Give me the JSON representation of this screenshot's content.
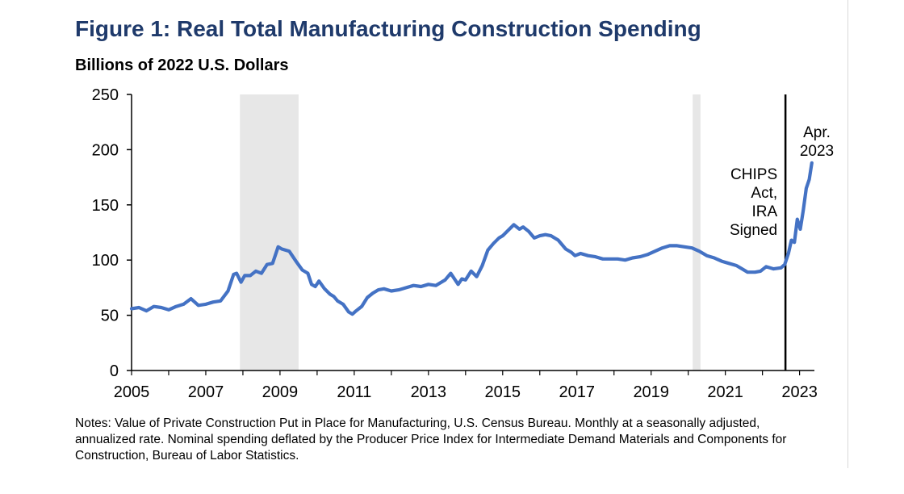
{
  "chart_data": {
    "type": "line",
    "title": "Figure 1: Real Total Manufacturing Construction Spending",
    "ylabel": "Billions of 2022 U.S. Dollars",
    "xlabel": "",
    "xlim": [
      2005,
      2023.4
    ],
    "ylim": [
      0,
      250
    ],
    "yticks": [
      0,
      50,
      100,
      150,
      200,
      250
    ],
    "xticks": [
      2005,
      2007,
      2009,
      2011,
      2013,
      2015,
      2017,
      2019,
      2021,
      2023
    ],
    "grid": false,
    "line_color": "#4472C4",
    "recession_shading": [
      {
        "start": 2007.92,
        "end": 2009.5
      },
      {
        "start": 2020.12,
        "end": 2020.33
      }
    ],
    "series": [
      {
        "name": "Real Total Manufacturing Construction Spending",
        "x": [
          2005.0,
          2005.2,
          2005.4,
          2005.6,
          2005.8,
          2006.0,
          2006.2,
          2006.4,
          2006.6,
          2006.8,
          2007.0,
          2007.2,
          2007.4,
          2007.6,
          2007.75,
          2007.83,
          2007.95,
          2008.05,
          2008.2,
          2008.35,
          2008.5,
          2008.65,
          2008.8,
          2008.95,
          2009.05,
          2009.15,
          2009.25,
          2009.45,
          2009.6,
          2009.75,
          2009.85,
          2009.95,
          2010.05,
          2010.2,
          2010.35,
          2010.45,
          2010.55,
          2010.7,
          2010.85,
          2010.95,
          2011.05,
          2011.2,
          2011.35,
          2011.5,
          2011.65,
          2011.8,
          2012.0,
          2012.2,
          2012.4,
          2012.6,
          2012.8,
          2013.0,
          2013.2,
          2013.35,
          2013.45,
          2013.6,
          2013.8,
          2013.9,
          2014.0,
          2014.15,
          2014.3,
          2014.45,
          2014.6,
          2014.75,
          2014.9,
          2015.0,
          2015.15,
          2015.3,
          2015.45,
          2015.55,
          2015.7,
          2015.85,
          2016.0,
          2016.15,
          2016.3,
          2016.5,
          2016.7,
          2016.85,
          2016.95,
          2017.1,
          2017.3,
          2017.5,
          2017.7,
          2017.9,
          2018.1,
          2018.3,
          2018.5,
          2018.7,
          2018.9,
          2019.1,
          2019.3,
          2019.5,
          2019.7,
          2019.9,
          2020.1,
          2020.3,
          2020.5,
          2020.7,
          2020.9,
          2021.1,
          2021.3,
          2021.45,
          2021.6,
          2021.8,
          2021.95,
          2022.1,
          2022.3,
          2022.5,
          2022.6,
          2022.7,
          2022.78,
          2022.86,
          2022.94,
          2023.02,
          2023.1,
          2023.18,
          2023.26,
          2023.33
        ],
        "values": [
          56,
          57,
          54,
          58,
          57,
          55,
          58,
          60,
          65,
          59,
          60,
          62,
          63,
          72,
          87,
          88,
          80,
          86,
          86,
          90,
          88,
          96,
          97,
          112,
          110,
          109,
          108,
          98,
          91,
          88,
          78,
          76,
          81,
          74,
          69,
          67,
          63,
          60,
          53,
          51,
          54,
          58,
          66,
          70,
          73,
          74,
          72,
          73,
          75,
          77,
          76,
          78,
          77,
          80,
          82,
          88,
          78,
          83,
          82,
          90,
          85,
          95,
          109,
          115,
          120,
          122,
          127,
          132,
          128,
          130,
          126,
          120,
          122,
          123,
          122,
          118,
          110,
          107,
          104,
          106,
          104,
          103,
          101,
          101,
          101,
          100,
          102,
          103,
          105,
          108,
          111,
          113,
          113,
          112,
          111,
          108,
          104,
          102,
          99,
          97,
          95,
          92,
          89,
          89,
          90,
          94,
          92,
          93,
          96,
          106,
          118,
          116,
          137,
          128,
          145,
          165,
          173,
          188
        ]
      }
    ],
    "annotations": [
      {
        "text_lines": [
          "CHIPS",
          "Act,",
          "IRA",
          "Signed"
        ],
        "x": 2022.62,
        "label": "CHIPS Act, IRA Signed"
      },
      {
        "text_lines": [
          "Apr.",
          "2023"
        ],
        "x": 2023.33,
        "label": "Apr. 2023"
      }
    ],
    "vertical_line": {
      "x": 2022.62
    }
  },
  "header": {
    "title": "Figure 1: Real Total Manufacturing Construction Spending",
    "subtitle": "Billions of 2022 U.S. Dollars"
  },
  "notes": {
    "text": "Notes: Value of Private Construction Put in Place for Manufacturing, U.S. Census Bureau. Monthly at a seasonally adjusted, annualized rate. Nominal spending deflated by the Producer Price Index for Intermediate Demand Materials and Components for Construction, Bureau of Labor Statistics."
  }
}
